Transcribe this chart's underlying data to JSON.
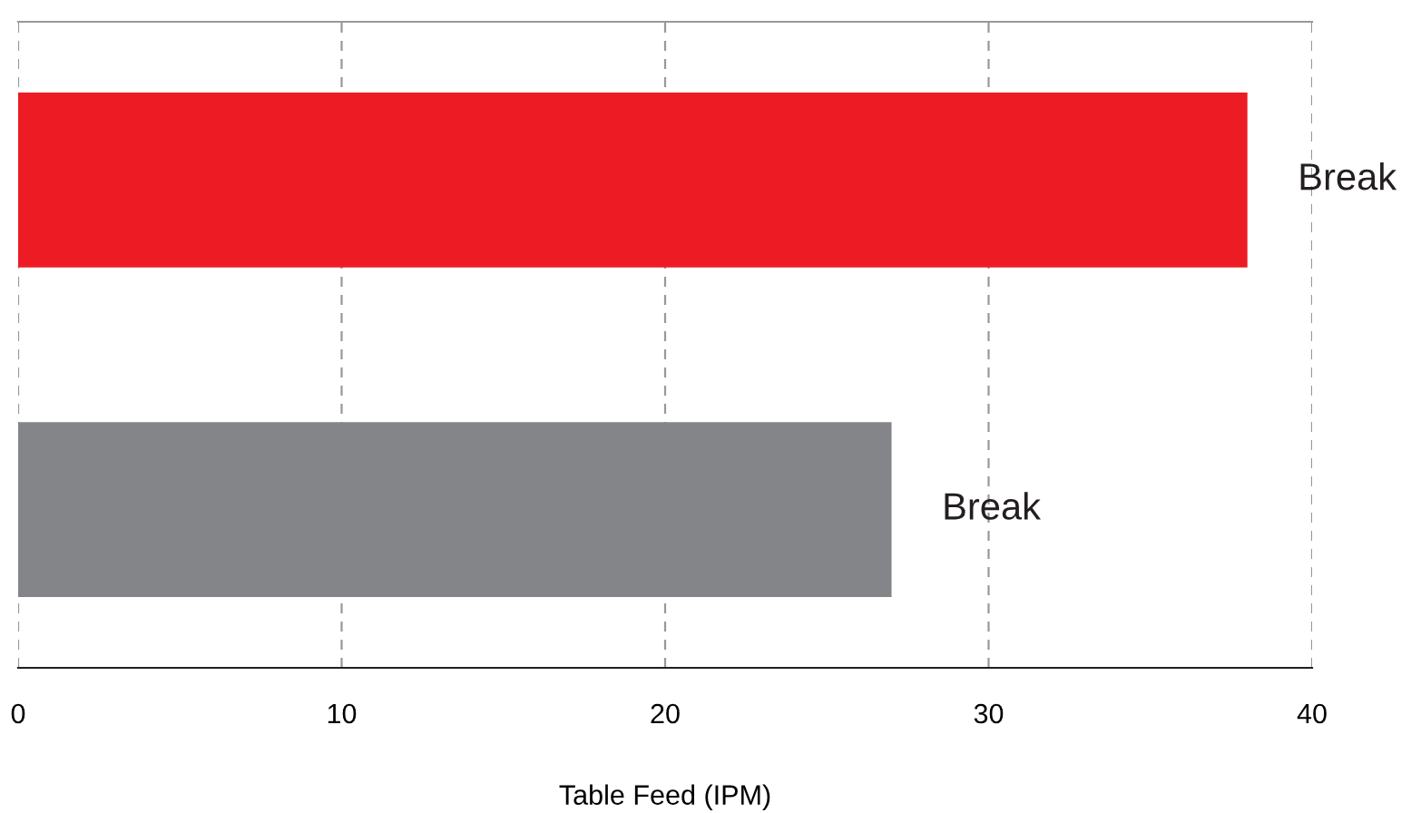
{
  "chart_data": {
    "type": "bar",
    "orientation": "horizontal",
    "xlabel": "Table Feed (IPM)",
    "categories": [
      null,
      null
    ],
    "values": [
      38,
      27
    ],
    "colors": [
      "#ed1c24",
      "#848589"
    ],
    "value_labels": [
      "Break",
      "Break"
    ],
    "xlim": [
      0,
      40
    ],
    "xticks": [
      0,
      10,
      20,
      30,
      40
    ],
    "grid": "x",
    "legend": false
  }
}
